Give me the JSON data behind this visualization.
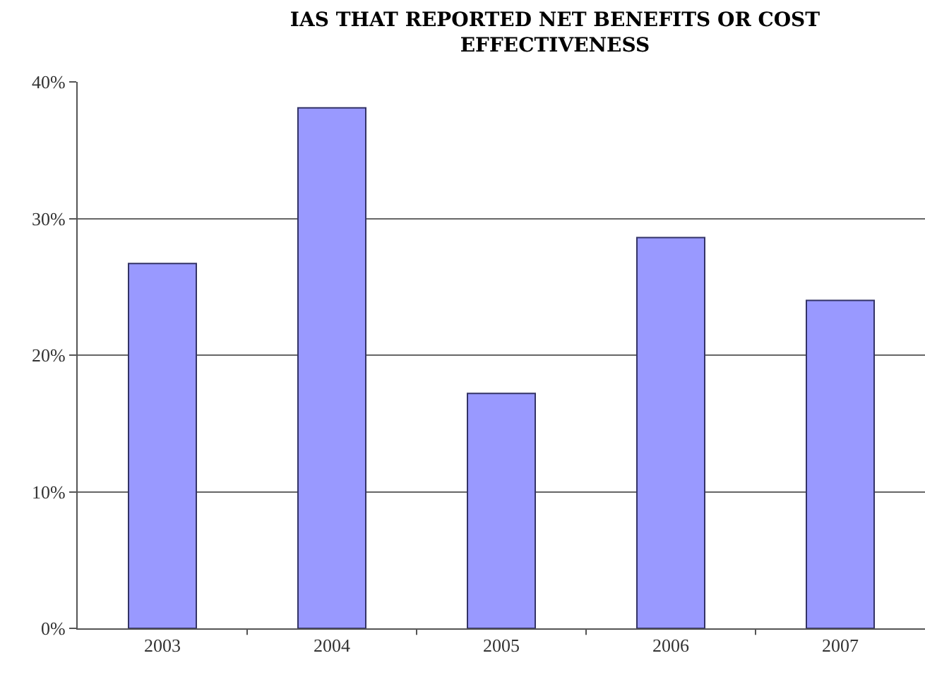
{
  "chart_data": {
    "type": "bar",
    "title": "IAS THAT REPORTED NET BENEFITS OR COST\nEFFECTIVENESS",
    "categories": [
      "2003",
      "2004",
      "2005",
      "2006",
      "2007"
    ],
    "values": [
      26.7,
      38.1,
      17.2,
      28.6,
      24.0
    ],
    "color": "#9999ff",
    "ylim": [
      0,
      40
    ],
    "yticks": [
      {
        "value": 0,
        "label": "0%"
      },
      {
        "value": 10,
        "label": "10%"
      },
      {
        "value": 20,
        "label": "20%"
      },
      {
        "value": 30,
        "label": "30%"
      },
      {
        "value": 40,
        "label": "40%"
      }
    ],
    "grid": "y"
  }
}
